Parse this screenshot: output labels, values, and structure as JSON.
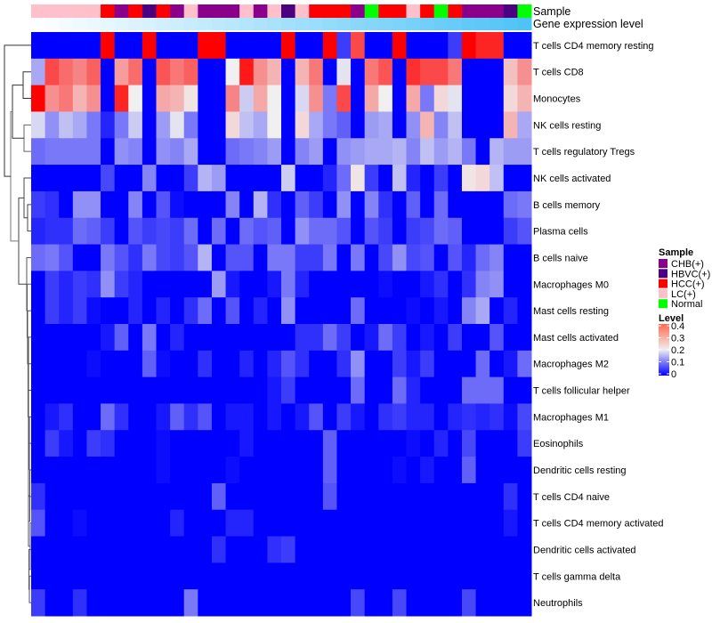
{
  "chart_data": {
    "type": "heatmap",
    "title": "",
    "annotation_labels": {
      "sample": "Sample",
      "gene_level": "Gene expression level"
    },
    "rows": [
      "T cells CD4 memory resting",
      "T cells CD8",
      "Monocytes",
      "NK cells resting",
      "T cells regulatory  Tregs",
      "NK cells activated",
      "B cells memory",
      "Plasma cells",
      "B cells naive",
      "Macrophages M0",
      "Mast cells resting",
      "Mast cells activated",
      "Macrophages M2",
      "T cells follicular helper",
      "Macrophages M1",
      "Eosinophils",
      "Dendritic cells resting",
      "T cells CD4 naive",
      "T cells CD4 memory activated",
      "Dendritic cells activated",
      "T cells gamma delta",
      "Neutrophils"
    ],
    "samples": [
      "LC(+)",
      "LC(+)",
      "LC(+)",
      "LC(+)",
      "LC(+)",
      "HCC(+)",
      "CHB(+)",
      "HCC(+)",
      "HBVC(+)",
      "HCC(+)",
      "CHB(+)",
      "LC(+)",
      "CHB(+)",
      "CHB(+)",
      "CHB(+)",
      "LC(+)",
      "CHB(+)",
      "LC(+)",
      "HBVC(+)",
      "LC(+)",
      "HCC(+)",
      "HCC(+)",
      "HCC(+)",
      "CHB(+)",
      "Normal",
      "HCC(+)",
      "HCC(+)",
      "LC(+)",
      "HCC(+)",
      "Normal",
      "HCC(+)",
      "CHB(+)",
      "CHB(+)",
      "CHB(+)",
      "HBVC(+)",
      "Normal"
    ],
    "gene_expression_level_rank": [
      0,
      0.03,
      0.06,
      0.09,
      0.11,
      0.14,
      0.17,
      0.2,
      0.23,
      0.26,
      0.29,
      0.31,
      0.34,
      0.37,
      0.4,
      0.43,
      0.46,
      0.49,
      0.51,
      0.54,
      0.57,
      0.6,
      0.63,
      0.66,
      0.69,
      0.71,
      0.74,
      0.77,
      0.8,
      0.83,
      0.86,
      0.89,
      0.91,
      0.94,
      0.97,
      1
    ],
    "values": [
      [
        0,
        0,
        0,
        0,
        0,
        0.4,
        0,
        0,
        0.4,
        0,
        0,
        0,
        0.4,
        0.4,
        0,
        0,
        0,
        0,
        0.4,
        0,
        0,
        0.4,
        0.05,
        0.34,
        0,
        0,
        0.4,
        0,
        0,
        0,
        0.05,
        0.4,
        0.37,
        0.37,
        0,
        0
      ],
      [
        0.14,
        0.34,
        0.31,
        0.29,
        0.32,
        0,
        0.27,
        0.31,
        0,
        0.33,
        0.3,
        0.32,
        0,
        0,
        0.2,
        0.38,
        0.28,
        0.25,
        0,
        0.25,
        0.3,
        0,
        0.19,
        0,
        0.3,
        0.33,
        0,
        0.36,
        0.34,
        0.34,
        0.3,
        0,
        0,
        0,
        0.24,
        0.28
      ],
      [
        0.4,
        0.28,
        0.3,
        0.25,
        0.28,
        0,
        0.37,
        0.2,
        0,
        0.26,
        0.25,
        0.21,
        0,
        0,
        0.29,
        0.17,
        0.26,
        0.2,
        0,
        0.18,
        0.28,
        0.1,
        0.34,
        0,
        0.26,
        0.2,
        0,
        0.26,
        0.1,
        0.22,
        0.19,
        0,
        0,
        0,
        0.22,
        0.25
      ],
      [
        0.18,
        0.12,
        0.16,
        0.14,
        0.1,
        0.03,
        0.1,
        0.17,
        0,
        0.13,
        0.19,
        0.1,
        0,
        0,
        0.22,
        0.16,
        0.14,
        0.2,
        0,
        0.22,
        0.14,
        0.1,
        0.08,
        0,
        0.13,
        0.14,
        0,
        0.12,
        0.25,
        0.11,
        0.16,
        0,
        0,
        0,
        0.25,
        0.14
      ],
      [
        0.09,
        0.1,
        0.1,
        0.1,
        0.1,
        0,
        0.12,
        0.11,
        0,
        0.12,
        0.11,
        0.14,
        0,
        0,
        0.09,
        0.1,
        0.11,
        0.13,
        0,
        0.11,
        0.13,
        0,
        0.12,
        0.13,
        0.14,
        0.14,
        0.15,
        0.11,
        0.16,
        0.13,
        0.15,
        0.1,
        0,
        0.15,
        0.13,
        0.13
      ],
      [
        0,
        0,
        0,
        0,
        0,
        0.06,
        0,
        0,
        0.11,
        0,
        0,
        0.05,
        0.15,
        0.13,
        0,
        0,
        0,
        0,
        0.17,
        0,
        0,
        0.03,
        0.09,
        0.21,
        0.05,
        0,
        0.16,
        0.03,
        0,
        0.05,
        0,
        0.21,
        0.22,
        0.16,
        0,
        0
      ],
      [
        0.05,
        0.04,
        0,
        0.12,
        0.12,
        0,
        0,
        0.11,
        0,
        0.07,
        0.01,
        0,
        0,
        0,
        0.11,
        0,
        0.15,
        0.04,
        0,
        0.08,
        0.05,
        0,
        0.12,
        0,
        0.11,
        0.04,
        0,
        0.08,
        0,
        0.09,
        0,
        0,
        0,
        0,
        0.09,
        0.1
      ],
      [
        0.03,
        0.04,
        0.04,
        0.09,
        0.08,
        0.05,
        0,
        0.07,
        0.05,
        0.06,
        0.05,
        0.09,
        0,
        0.09,
        0,
        0.09,
        0.07,
        0.08,
        0,
        0.12,
        0.09,
        0.09,
        0.07,
        0,
        0.07,
        0.05,
        0,
        0.05,
        0.06,
        0.09,
        0.08,
        0,
        0,
        0,
        0.05,
        0.07
      ],
      [
        0.09,
        0.1,
        0.07,
        0,
        0,
        0.1,
        0.07,
        0.04,
        0.1,
        0.06,
        0.05,
        0.07,
        0.15,
        0,
        0.07,
        0.07,
        0,
        0.1,
        0.1,
        0.05,
        0.05,
        0.1,
        0,
        0.1,
        0,
        0.06,
        0.12,
        0.06,
        0.07,
        0,
        0.07,
        0.03,
        0.09,
        0.11,
        0,
        0
      ],
      [
        0,
        0.05,
        0.03,
        0.05,
        0.04,
        0.12,
        0.05,
        0.03,
        0,
        0,
        0,
        0,
        0,
        0.13,
        0.02,
        0,
        0,
        0.02,
        0.1,
        0.03,
        0,
        0,
        0,
        0,
        0,
        0.01,
        0,
        0,
        0.02,
        0.04,
        0,
        0.04,
        0.11,
        0.12,
        0,
        0
      ],
      [
        0,
        0.05,
        0.03,
        0.05,
        0.01,
        0,
        0,
        0.03,
        0,
        0.03,
        0,
        0.04,
        0.09,
        0,
        0.07,
        0,
        0.03,
        0,
        0.12,
        0,
        0,
        0,
        0,
        0.09,
        0,
        0,
        0,
        0.01,
        0,
        0.02,
        0,
        0.11,
        0.14,
        0,
        0.03,
        0
      ],
      [
        0,
        0,
        0,
        0,
        0,
        0.02,
        0.08,
        0,
        0.1,
        0,
        0.03,
        0,
        0,
        0,
        0,
        0,
        0,
        0,
        0,
        0.04,
        0.04,
        0.09,
        0.05,
        0,
        0.02,
        0.09,
        0.05,
        0,
        0.02,
        0,
        0.05,
        0,
        0,
        0.07,
        0,
        0
      ],
      [
        0,
        0,
        0,
        0,
        0.01,
        0,
        0,
        0,
        0.08,
        0.01,
        0,
        0,
        0.04,
        0,
        0,
        0.03,
        0,
        0.03,
        0.07,
        0.04,
        0,
        0,
        0.04,
        0.12,
        0,
        0,
        0.05,
        0.02,
        0.05,
        0,
        0,
        0,
        0.09,
        0,
        0.02,
        0.09
      ],
      [
        0,
        0,
        0,
        0,
        0,
        0,
        0,
        0,
        0,
        0,
        0,
        0,
        0,
        0,
        0,
        0,
        0,
        0.02,
        0.05,
        0,
        0,
        0,
        0,
        0.09,
        0,
        0,
        0.09,
        0.03,
        0,
        0,
        0,
        0.09,
        0.09,
        0.09,
        0,
        0
      ],
      [
        0,
        0.02,
        0.04,
        0,
        0,
        0.09,
        0.04,
        0,
        0,
        0.02,
        0.08,
        0.04,
        0.07,
        0,
        0.02,
        0.02,
        0,
        0.02,
        0,
        0.02,
        0.07,
        0,
        0.05,
        0.02,
        0,
        0.04,
        0.05,
        0.03,
        0.03,
        0,
        0.03,
        0.04,
        0.03,
        0.04,
        0.01,
        0.06
      ],
      [
        0,
        0.05,
        0.02,
        0,
        0.05,
        0.04,
        0,
        0,
        0,
        0.01,
        0,
        0,
        0,
        0,
        0,
        0.02,
        0,
        0,
        0,
        0,
        0,
        0.08,
        0,
        0,
        0,
        0,
        0,
        0.01,
        0,
        0.03,
        0,
        0.06,
        0,
        0,
        0,
        0.05
      ],
      [
        0,
        0,
        0,
        0,
        0,
        0,
        0,
        0,
        0,
        0.01,
        0,
        0,
        0,
        0,
        0.01,
        0,
        0,
        0,
        0,
        0,
        0,
        0.08,
        0,
        0,
        0,
        0,
        0.01,
        0,
        0.02,
        0,
        0,
        0.08,
        0,
        0,
        0,
        0
      ],
      [
        0.04,
        0,
        0,
        0,
        0,
        0,
        0,
        0,
        0,
        0,
        0,
        0,
        0,
        0.08,
        0,
        0,
        0,
        0,
        0,
        0,
        0,
        0.07,
        0,
        0,
        0,
        0,
        0,
        0,
        0,
        0,
        0,
        0,
        0,
        0,
        0.04,
        0
      ],
      [
        0.07,
        0,
        0,
        0.01,
        0,
        0,
        0,
        0,
        0,
        0,
        0.03,
        0,
        0,
        0,
        0.03,
        0.03,
        0,
        0,
        0,
        0,
        0,
        0,
        0,
        0,
        0,
        0,
        0,
        0,
        0,
        0,
        0,
        0,
        0,
        0,
        0.02,
        0
      ],
      [
        0,
        0,
        0,
        0,
        0,
        0,
        0,
        0,
        0,
        0,
        0,
        0,
        0,
        0.04,
        0,
        0,
        0,
        0.04,
        0.05,
        0,
        0,
        0,
        0,
        0,
        0,
        0,
        0,
        0,
        0,
        0,
        0,
        0,
        0,
        0,
        0,
        0
      ],
      [
        0,
        0,
        0,
        0,
        0,
        0,
        0,
        0,
        0,
        0,
        0,
        0,
        0,
        0,
        0,
        0,
        0,
        0,
        0,
        0,
        0,
        0,
        0,
        0,
        0,
        0,
        0,
        0,
        0,
        0,
        0,
        0,
        0,
        0,
        0,
        0
      ],
      [
        0.05,
        0,
        0,
        0.04,
        0,
        0,
        0,
        0,
        0,
        0,
        0,
        0.1,
        0,
        0,
        0,
        0,
        0,
        0,
        0,
        0,
        0,
        0,
        0,
        0.06,
        0,
        0,
        0.06,
        0,
        0,
        0,
        0,
        0.06,
        0,
        0,
        0,
        0
      ]
    ],
    "legend": {
      "sample_title": "Sample",
      "sample_entries": [
        {
          "label": "CHB(+)",
          "color": "#8B008B"
        },
        {
          "label": "HBVC(+)",
          "color": "#4B0082"
        },
        {
          "label": "HCC(+)",
          "color": "#FF0000"
        },
        {
          "label": "LC(+)",
          "color": "#FFC0CB"
        },
        {
          "label": "Normal",
          "color": "#00FF00"
        }
      ],
      "level_title": "Level",
      "level_ticks": [
        "0.4",
        "0.3",
        "0.2",
        "0.1",
        "0"
      ],
      "range": [
        0,
        0.4
      ]
    },
    "colors": {
      "low": "#0000FF",
      "mid": "#F0F0F0",
      "high": "#FF0000",
      "gene_low": "#FFFFFF",
      "gene_high": "#4FC3F7"
    }
  }
}
